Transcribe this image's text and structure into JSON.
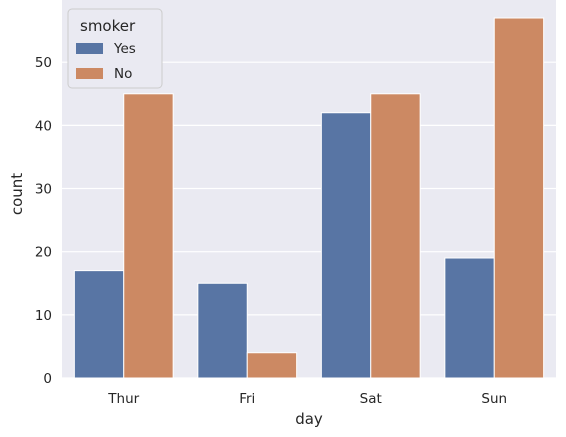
{
  "chart_data": {
    "type": "bar",
    "title": "",
    "xlabel": "day",
    "ylabel": "count",
    "categories": [
      "Thur",
      "Fri",
      "Sat",
      "Sun"
    ],
    "series": [
      {
        "name": "Yes",
        "values": [
          17,
          15,
          42,
          19
        ],
        "color": "#5875a4"
      },
      {
        "name": "No",
        "values": [
          45,
          4,
          45,
          57
        ],
        "color": "#cc8963"
      }
    ],
    "ylim": [
      0,
      59.85
    ],
    "yticks": [
      "0",
      "10",
      "20",
      "30",
      "40",
      "50"
    ],
    "legend": {
      "title": "smoker",
      "placement": "top-left"
    },
    "grid": true,
    "background": "#eaeaf2"
  }
}
